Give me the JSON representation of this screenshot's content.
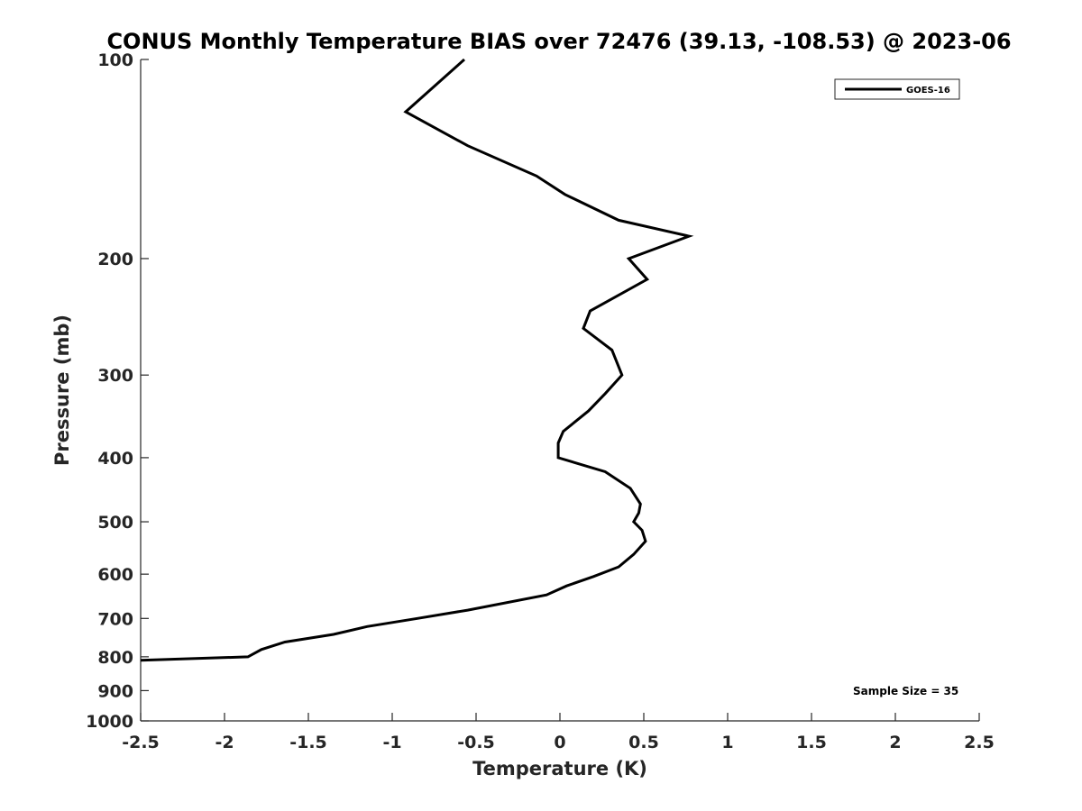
{
  "chart_data": {
    "type": "line",
    "title": "CONUS Monthly Temperature BIAS over 72476 (39.13, -108.53) @ 2023-06",
    "xlabel": "Temperature (K)",
    "ylabel": "Pressure (mb)",
    "xlim": [
      -2.5,
      2.5
    ],
    "ylim": [
      1000,
      100
    ],
    "y_scale": "log",
    "y_reversed": true,
    "grid": false,
    "legend_position": "top-right",
    "xticks": [
      -2.5,
      -2,
      -1.5,
      -1,
      -0.5,
      0,
      0.5,
      1,
      1.5,
      2,
      2.5
    ],
    "xtick_labels": [
      "-2.5",
      "-2",
      "-1.5",
      "-1",
      "-0.5",
      "0",
      "0.5",
      "1",
      "1.5",
      "2",
      "2.5"
    ],
    "yticks": [
      100,
      200,
      300,
      400,
      500,
      600,
      700,
      800,
      900,
      1000
    ],
    "ytick_labels": [
      "100",
      "200",
      "300",
      "400",
      "500",
      "600",
      "700",
      "800",
      "900",
      "1000"
    ],
    "annotation": "Sample Size = 35",
    "series": [
      {
        "name": "GOES-16",
        "color": "#000000",
        "points": [
          {
            "x": -0.57,
            "p": 100
          },
          {
            "x": -0.92,
            "p": 120
          },
          {
            "x": -0.55,
            "p": 135
          },
          {
            "x": -0.14,
            "p": 150
          },
          {
            "x": 0.03,
            "p": 160
          },
          {
            "x": 0.35,
            "p": 175
          },
          {
            "x": 0.77,
            "p": 185
          },
          {
            "x": 0.41,
            "p": 200
          },
          {
            "x": 0.52,
            "p": 215
          },
          {
            "x": 0.18,
            "p": 240
          },
          {
            "x": 0.14,
            "p": 255
          },
          {
            "x": 0.31,
            "p": 275
          },
          {
            "x": 0.37,
            "p": 300
          },
          {
            "x": 0.27,
            "p": 320
          },
          {
            "x": 0.17,
            "p": 340
          },
          {
            "x": 0.02,
            "p": 365
          },
          {
            "x": -0.01,
            "p": 380
          },
          {
            "x": -0.01,
            "p": 400
          },
          {
            "x": 0.27,
            "p": 420
          },
          {
            "x": 0.42,
            "p": 445
          },
          {
            "x": 0.48,
            "p": 470
          },
          {
            "x": 0.47,
            "p": 485
          },
          {
            "x": 0.44,
            "p": 500
          },
          {
            "x": 0.49,
            "p": 515
          },
          {
            "x": 0.51,
            "p": 535
          },
          {
            "x": 0.44,
            "p": 560
          },
          {
            "x": 0.35,
            "p": 585
          },
          {
            "x": 0.2,
            "p": 605
          },
          {
            "x": 0.04,
            "p": 625
          },
          {
            "x": -0.08,
            "p": 645
          },
          {
            "x": -0.55,
            "p": 680
          },
          {
            "x": -0.85,
            "p": 700
          },
          {
            "x": -1.15,
            "p": 720
          },
          {
            "x": -1.35,
            "p": 740
          },
          {
            "x": -1.64,
            "p": 760
          },
          {
            "x": -1.78,
            "p": 780
          },
          {
            "x": -1.86,
            "p": 800
          },
          {
            "x": -2.5,
            "p": 810
          }
        ]
      }
    ]
  }
}
